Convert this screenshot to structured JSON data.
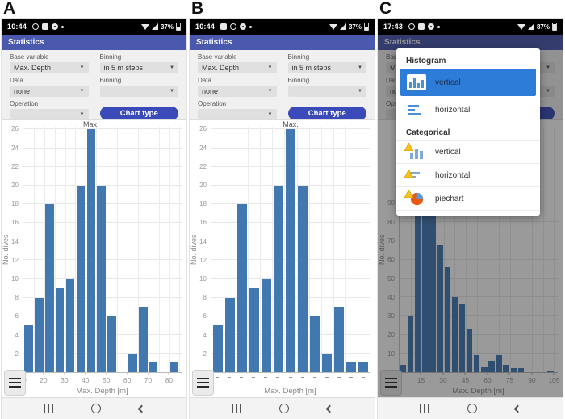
{
  "panels": [
    {
      "figure_label": "A",
      "status_bar": {
        "time": "10:44",
        "battery_percent": "37%",
        "icons_left": [
          "whatsapp-icon",
          "gallery-icon",
          "compass-icon",
          "notification-dot-icon"
        ],
        "icons_right": [
          "wifi-icon",
          "signal-icon",
          "battery-icon"
        ]
      },
      "header_title": "Statistics",
      "form": {
        "base_variable_label": "Base variable",
        "base_variable_value": "Max. Depth",
        "binning1_label": "Binning",
        "binning1_value": "in 5 m steps",
        "data_label": "Data",
        "data_value": "none",
        "binning2_label": "Binning",
        "binning2_value": "",
        "operation_label": "Operation",
        "operation_value": "",
        "chart_type_button_label": "Chart type"
      }
    },
    {
      "figure_label": "B",
      "status_bar": {
        "time": "10:44",
        "battery_percent": "37%",
        "icons_left": [
          "gallery-icon",
          "whatsapp-icon",
          "compass-icon",
          "notification-dot-icon"
        ],
        "icons_right": [
          "wifi-icon",
          "signal-icon",
          "battery-icon"
        ]
      },
      "header_title": "Statistics",
      "form": {
        "base_variable_label": "Base variable",
        "base_variable_value": "Max. Depth",
        "binning1_label": "Binning",
        "binning1_value": "in 5 m steps",
        "data_label": "Data",
        "data_value": "none",
        "binning2_label": "Binning",
        "binning2_value": "",
        "operation_label": "Operation",
        "operation_value": "",
        "chart_type_button_label": "Chart type"
      }
    },
    {
      "figure_label": "C",
      "status_bar": {
        "time": "17:43",
        "battery_percent": "87%",
        "icons_left": [
          "whatsapp-icon",
          "youtube-icon",
          "speaker-icon",
          "notification-dot-icon"
        ],
        "icons_right": [
          "wifi-icon",
          "signal-icon",
          "battery-icon"
        ]
      },
      "header_title": "Statistics",
      "form": {
        "base_variable_label": "Base variable",
        "base_variable_value": "Max. Depth",
        "binning1_label": "Binning",
        "binning1_value": "in 5 m steps",
        "data_label": "Data",
        "data_value": "none",
        "binning2_label": "Binning",
        "binning2_value": "",
        "operation_label": "Operation",
        "operation_value": "",
        "chart_type_button_label": "Chart type"
      }
    }
  ],
  "popup": {
    "sections": [
      {
        "title": "Histogram",
        "items": [
          {
            "label": "vertical",
            "icon": "histogram-vertical-icon",
            "selected": true
          },
          {
            "label": "horizontal",
            "icon": "histogram-horizontal-icon",
            "selected": false
          }
        ]
      },
      {
        "title": "Categorical",
        "items": [
          {
            "label": "vertical",
            "icon": "categorical-vertical-icon",
            "selected": false
          },
          {
            "label": "horizontal",
            "icon": "categorical-horizontal-icon",
            "selected": false
          },
          {
            "label": "piechart",
            "icon": "piechart-icon",
            "selected": false
          }
        ]
      }
    ]
  },
  "chart_data": [
    {
      "type": "bar",
      "subtype": "histogram-vertical",
      "xlabel": "Max. Depth [m]",
      "ylabel": "No. dives",
      "bin_width": 5,
      "bin_starts": [
        10,
        15,
        20,
        25,
        30,
        35,
        40,
        45,
        50,
        55,
        60,
        65,
        70,
        75,
        80
      ],
      "values": [
        5,
        8,
        18,
        9,
        10,
        20,
        26,
        20,
        6,
        0,
        2,
        7,
        1,
        0,
        1
      ],
      "xlim": [
        10,
        86
      ],
      "ylim": [
        0,
        26.3
      ],
      "xticks": [
        10,
        20,
        30,
        40,
        50,
        60,
        70,
        80
      ],
      "yticks": [
        0,
        2,
        4,
        6,
        8,
        10,
        12,
        14,
        16,
        18,
        20,
        22,
        24,
        26
      ],
      "grid": true,
      "vgrid_step": 5,
      "annotation": {
        "text": "Max.",
        "bar_index": 6
      }
    },
    {
      "type": "bar",
      "subtype": "histogram-vertical-categorical",
      "xlabel": "Max. Depth [m]",
      "ylabel": "No. dives",
      "values": [
        5,
        8,
        18,
        9,
        10,
        20,
        26,
        20,
        6,
        2,
        7,
        1,
        1
      ],
      "x_tick_marks": "dash",
      "ylim": [
        0,
        26.3
      ],
      "yticks": [
        0,
        2,
        4,
        6,
        8,
        10,
        12,
        14,
        16,
        18,
        20,
        22,
        24,
        26
      ],
      "grid": true,
      "annotation": {
        "text": "Max.",
        "bar_index": 6
      }
    },
    {
      "type": "bar",
      "subtype": "histogram-vertical",
      "xlabel": "Max. Depth [m]",
      "ylabel": "No. dives",
      "bin_width": 5,
      "bin_starts": [
        0,
        5,
        10,
        15,
        20,
        25,
        30,
        35,
        40,
        45,
        50,
        55,
        60,
        65,
        70,
        75,
        80,
        85,
        90,
        95,
        100
      ],
      "values": [
        4,
        30,
        92,
        128,
        105,
        68,
        56,
        40,
        36,
        23,
        9,
        3,
        6,
        9,
        4,
        2,
        2,
        0,
        0,
        0,
        1
      ],
      "xlim": [
        0,
        107.5
      ],
      "ylim": [
        0,
        131
      ],
      "xticks": [
        0,
        15,
        30,
        45,
        60,
        75,
        90,
        105
      ],
      "yticks": [
        0,
        10,
        20,
        30,
        40,
        50,
        60,
        70,
        80,
        90
      ],
      "grid": true,
      "vgrid_step": 7.5,
      "annotation": null
    }
  ]
}
